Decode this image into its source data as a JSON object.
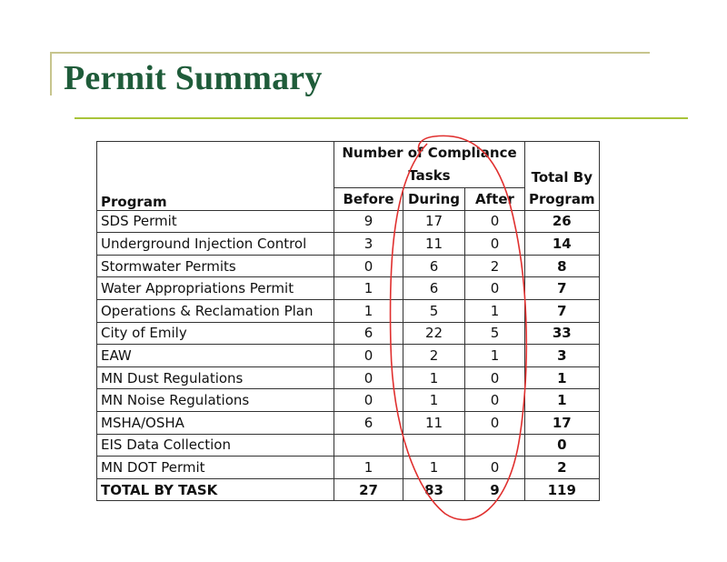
{
  "slide": {
    "title": "Permit Summary"
  },
  "table": {
    "headers": {
      "program": "Program",
      "group": "Number of Compliance Tasks",
      "total": "Total By Program",
      "before": "Before",
      "during": "During",
      "after": "After"
    },
    "rows": [
      {
        "program": "SDS Permit",
        "before": "9",
        "during": "17",
        "after": "0",
        "total": "26"
      },
      {
        "program": "Underground Injection Control",
        "before": "3",
        "during": "11",
        "after": "0",
        "total": "14"
      },
      {
        "program": "Stormwater Permits",
        "before": "0",
        "during": "6",
        "after": "2",
        "total": "8"
      },
      {
        "program": "Water Appropriations Permit",
        "before": "1",
        "during": "6",
        "after": "0",
        "total": "7"
      },
      {
        "program": "Operations & Reclamation Plan",
        "before": "1",
        "during": "5",
        "after": "1",
        "total": "7"
      },
      {
        "program": "City of Emily",
        "before": "6",
        "during": "22",
        "after": "5",
        "total": "33"
      },
      {
        "program": "EAW",
        "before": "0",
        "during": "2",
        "after": "1",
        "total": "3"
      },
      {
        "program": "MN Dust Regulations",
        "before": "0",
        "during": "1",
        "after": "0",
        "total": "1"
      },
      {
        "program": "MN Noise Regulations",
        "before": "0",
        "during": "1",
        "after": "0",
        "total": "1"
      },
      {
        "program": "MSHA/OSHA",
        "before": "6",
        "during": "11",
        "after": "0",
        "total": "17"
      },
      {
        "program": "EIS Data Collection",
        "before": "",
        "during": "",
        "after": "",
        "total": "0"
      },
      {
        "program": "MN DOT Permit",
        "before": "1",
        "during": "1",
        "after": "0",
        "total": "2"
      }
    ],
    "total_row": {
      "program": "TOTAL BY TASK",
      "before": "27",
      "during": "83",
      "after": "9",
      "total": "119"
    }
  },
  "colors": {
    "title": "#1f5c3a",
    "underline": "#a8c43a",
    "frame": "#c7c58e",
    "annotation": "#e0302f"
  }
}
